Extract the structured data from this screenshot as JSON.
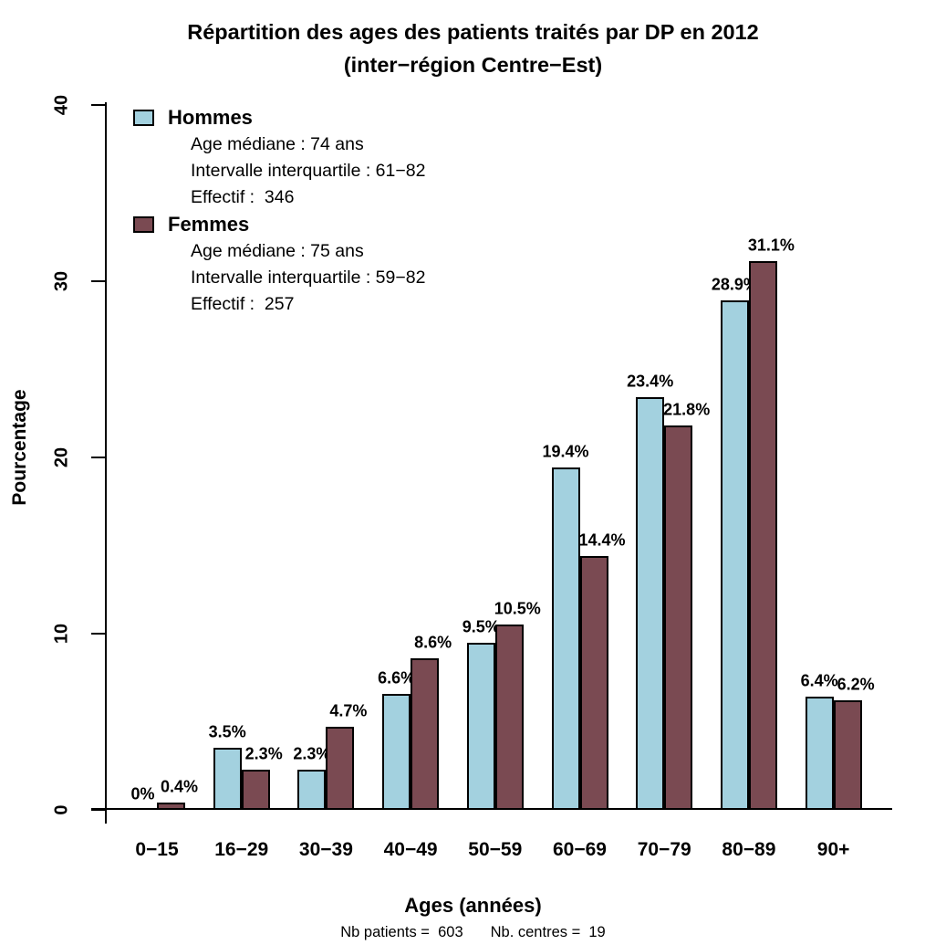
{
  "chart_data": {
    "type": "bar",
    "title": "Répartition des ages des patients traités par DP en 2012",
    "subtitle": "(inter−région Centre−Est)",
    "xlabel": "Ages (années)",
    "ylabel": "Pourcentage",
    "footnote_left": "Nb patients =  603",
    "footnote_right": "Nb. centres =  19",
    "categories": [
      "0−15",
      "16−29",
      "30−39",
      "40−49",
      "50−59",
      "60−69",
      "70−79",
      "80−89",
      "90+"
    ],
    "y_ticks": [
      0,
      10,
      20,
      30,
      40
    ],
    "ylim": [
      0,
      40
    ],
    "grid": false,
    "legend_position": "top-left",
    "bar_border_color": "#000000",
    "series": [
      {
        "name": "Hommes",
        "color": "#A3D1DF",
        "values": [
          0,
          3.5,
          2.3,
          6.6,
          9.5,
          19.4,
          23.4,
          28.9,
          6.4
        ],
        "labels": [
          "0%",
          "3.5%",
          "2.3%",
          "6.6%",
          "9.5%",
          "19.4%",
          "23.4%",
          "28.9%",
          "6.4%"
        ],
        "legend_lines": [
          "Age médiane : 74 ans",
          "Intervalle interquartile : 61−82",
          "Effectif :  346"
        ]
      },
      {
        "name": "Femmes",
        "color": "#7A4A52",
        "values": [
          0.4,
          2.3,
          4.7,
          8.6,
          10.5,
          14.4,
          21.8,
          31.1,
          6.2
        ],
        "labels": [
          "0.4%",
          "2.3%",
          "4.7%",
          "8.6%",
          "10.5%",
          "14.4%",
          "21.8%",
          "31.1%",
          "6.2%"
        ],
        "legend_lines": [
          "Age médiane : 75 ans",
          "Intervalle interquartile : 59−82",
          "Effectif :  257"
        ]
      }
    ]
  }
}
